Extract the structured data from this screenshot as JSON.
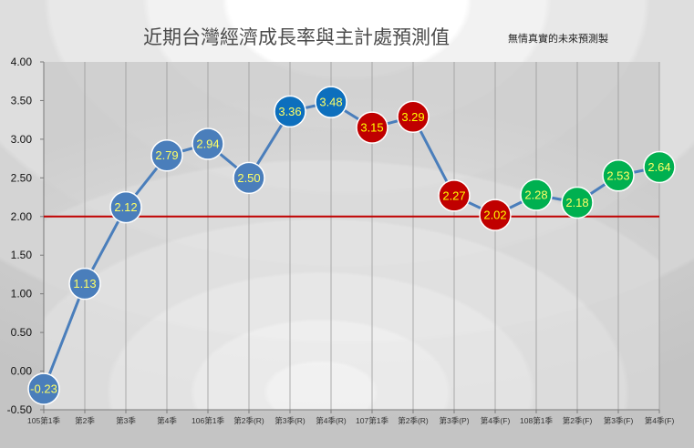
{
  "chart_data": {
    "type": "line",
    "title": "近期台灣經濟成長率與主計處預測值",
    "subtitle": "無情真實的未來預測製",
    "ylim": [
      -0.5,
      4.0
    ],
    "yticks": [
      "4.00",
      "3.50",
      "3.00",
      "2.50",
      "2.00",
      "1.50",
      "1.00",
      "0.50",
      "0.00",
      "-0.50"
    ],
    "ytick_values": [
      4.0,
      3.5,
      3.0,
      2.5,
      2.0,
      1.5,
      1.0,
      0.5,
      0.0,
      -0.5
    ],
    "categories": [
      "105第1季",
      "第2季",
      "第3季",
      "第4季",
      "106第1季",
      "第2季(R)",
      "第3季(R)",
      "第4季(R)",
      "107第1季",
      "第2季(R)",
      "第3季(P)",
      "第4季(F)",
      "108第1季",
      "第2季(F)",
      "第3季(F)",
      "第4季(F)"
    ],
    "values": [
      -0.23,
      1.13,
      2.12,
      2.79,
      2.94,
      2.5,
      3.36,
      3.48,
      3.15,
      3.29,
      2.27,
      2.02,
      2.28,
      2.18,
      2.53,
      2.64
    ],
    "labels": [
      "-0.23",
      "1.13",
      "2.12",
      "2.79",
      "2.94",
      "2.50",
      "3.36",
      "3.48",
      "3.15",
      "3.29",
      "2.27",
      "2.02",
      "2.28",
      "2.18",
      "2.53",
      "2.64"
    ],
    "marker_groups": [
      "steel",
      "steel",
      "steel",
      "steel",
      "steel",
      "steel",
      "blue",
      "blue",
      "red",
      "red",
      "red",
      "red",
      "green",
      "green",
      "green",
      "green"
    ],
    "reference_line": 2.0,
    "grid": "vertical",
    "colors": {
      "line": "#4a7ebb",
      "steel": "#4a7ebb",
      "blue": "#0d6fbd",
      "red": "#c00000",
      "green": "#00b050",
      "reference": "#c00000",
      "label_text": "#ffff66",
      "label_text_red": "#ffff00"
    }
  }
}
